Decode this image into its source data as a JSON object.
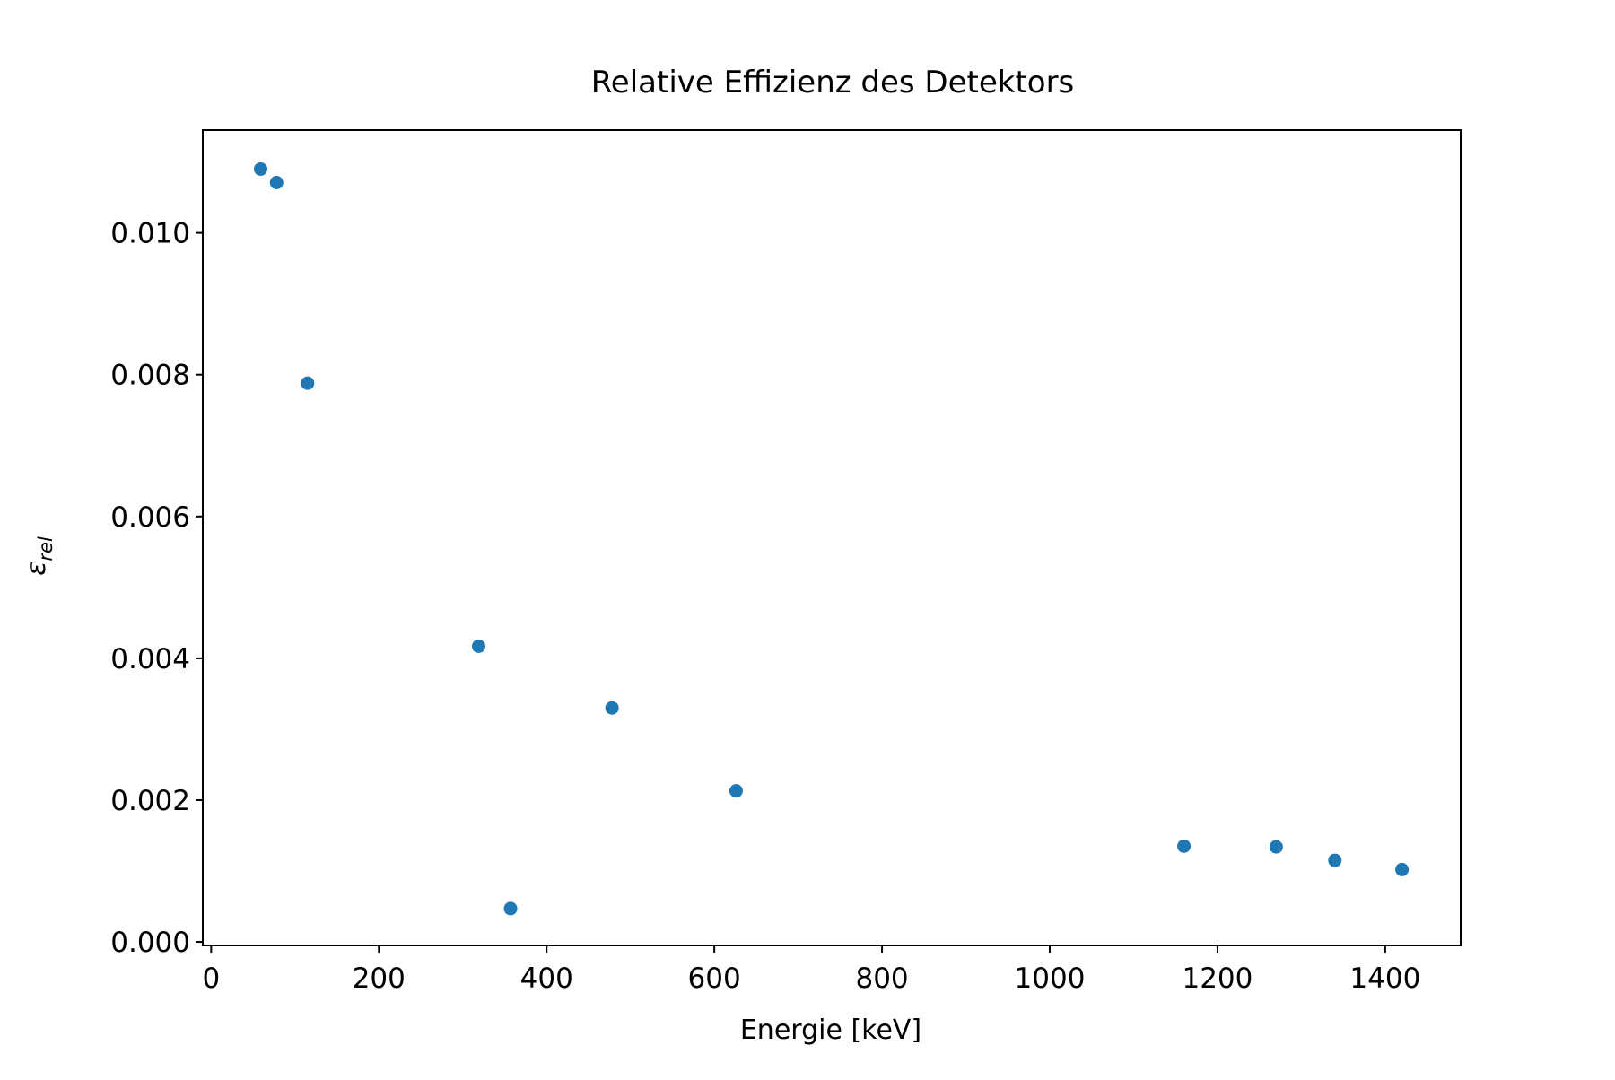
{
  "chart_data": {
    "type": "scatter",
    "title": "Relative Effizienz des Detektors",
    "xlabel": "Energie [keV]",
    "ylabel_main": "ε",
    "ylabel_sub": "rel",
    "xlim": [
      -10,
      1490
    ],
    "ylim": [
      -5e-05,
      0.01145
    ],
    "x_ticks": [
      0,
      200,
      400,
      600,
      800,
      1000,
      1200,
      1400
    ],
    "x_tick_labels": [
      "0",
      "200",
      "400",
      "600",
      "800",
      "1000",
      "1200",
      "1400"
    ],
    "y_ticks": [
      0.0,
      0.002,
      0.004,
      0.006,
      0.008,
      0.01
    ],
    "y_tick_labels": [
      "0.000",
      "0.002",
      "0.004",
      "0.006",
      "0.008",
      "0.010"
    ],
    "grid": false,
    "series": [
      {
        "color": "#1f77b4",
        "points": [
          {
            "x": 59,
            "y": 0.0109
          },
          {
            "x": 78,
            "y": 0.01071
          },
          {
            "x": 115,
            "y": 0.00788
          },
          {
            "x": 319,
            "y": 0.00417
          },
          {
            "x": 357,
            "y": 0.00047
          },
          {
            "x": 478,
            "y": 0.0033
          },
          {
            "x": 626,
            "y": 0.00213
          },
          {
            "x": 1160,
            "y": 0.00135
          },
          {
            "x": 1270,
            "y": 0.00134
          },
          {
            "x": 1340,
            "y": 0.00115
          },
          {
            "x": 1420,
            "y": 0.00102
          }
        ]
      }
    ]
  }
}
